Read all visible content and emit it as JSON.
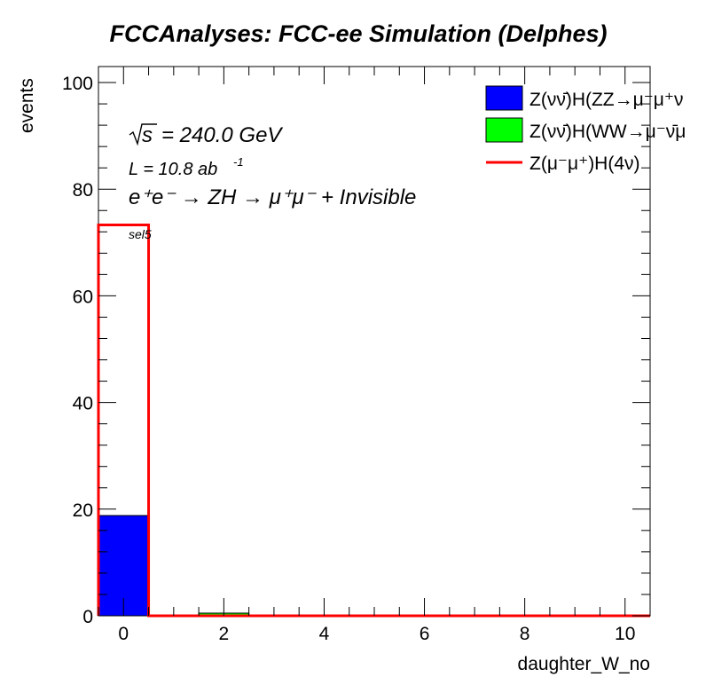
{
  "chart_data": {
    "type": "bar",
    "title": "FCCAnalyses: FCC-ee Simulation (Delphes)",
    "xlabel": "daughter_W_no",
    "ylabel": "events",
    "xlim": [
      -0.5,
      10.5
    ],
    "ylim": [
      0,
      103
    ],
    "xticks": [
      0,
      2,
      4,
      6,
      8,
      10
    ],
    "yticks": [
      0,
      20,
      40,
      60,
      80,
      100
    ],
    "bin_edges": [
      -0.5,
      0.5,
      1.5,
      2.5,
      3.5,
      4.5,
      5.5,
      6.5,
      7.5,
      8.5,
      9.5,
      10.5
    ],
    "series": [
      {
        "name": "Z(νν̄)H(ZZ→μ⁻μ⁺ν",
        "kind": "filled",
        "color": "#0000ff",
        "values": [
          18.8,
          0,
          0,
          0,
          0,
          0,
          0,
          0,
          0,
          0,
          0
        ]
      },
      {
        "name": "Z(νν̄)H(WW→μ⁻ν̄μ",
        "kind": "filled",
        "color": "#00ff00",
        "values": [
          0,
          0,
          0.5,
          0,
          0,
          0,
          0,
          0,
          0,
          0,
          0
        ]
      },
      {
        "name": "Z(μ⁻μ⁺)H(4ν)",
        "kind": "line",
        "color": "#ff0000",
        "values": [
          73.3,
          0,
          0,
          0,
          0,
          0,
          0,
          0,
          0,
          0,
          0
        ]
      }
    ],
    "legend_position": "top-right",
    "annotations": {
      "sqrt_s": "= 240.0 GeV",
      "lumi": "L = 10.8 ab",
      "lumi_exp": "-1",
      "process": "e⁺e⁻ → ZH → μ⁺μ⁻ + Invisible",
      "selection": "sel5"
    }
  }
}
